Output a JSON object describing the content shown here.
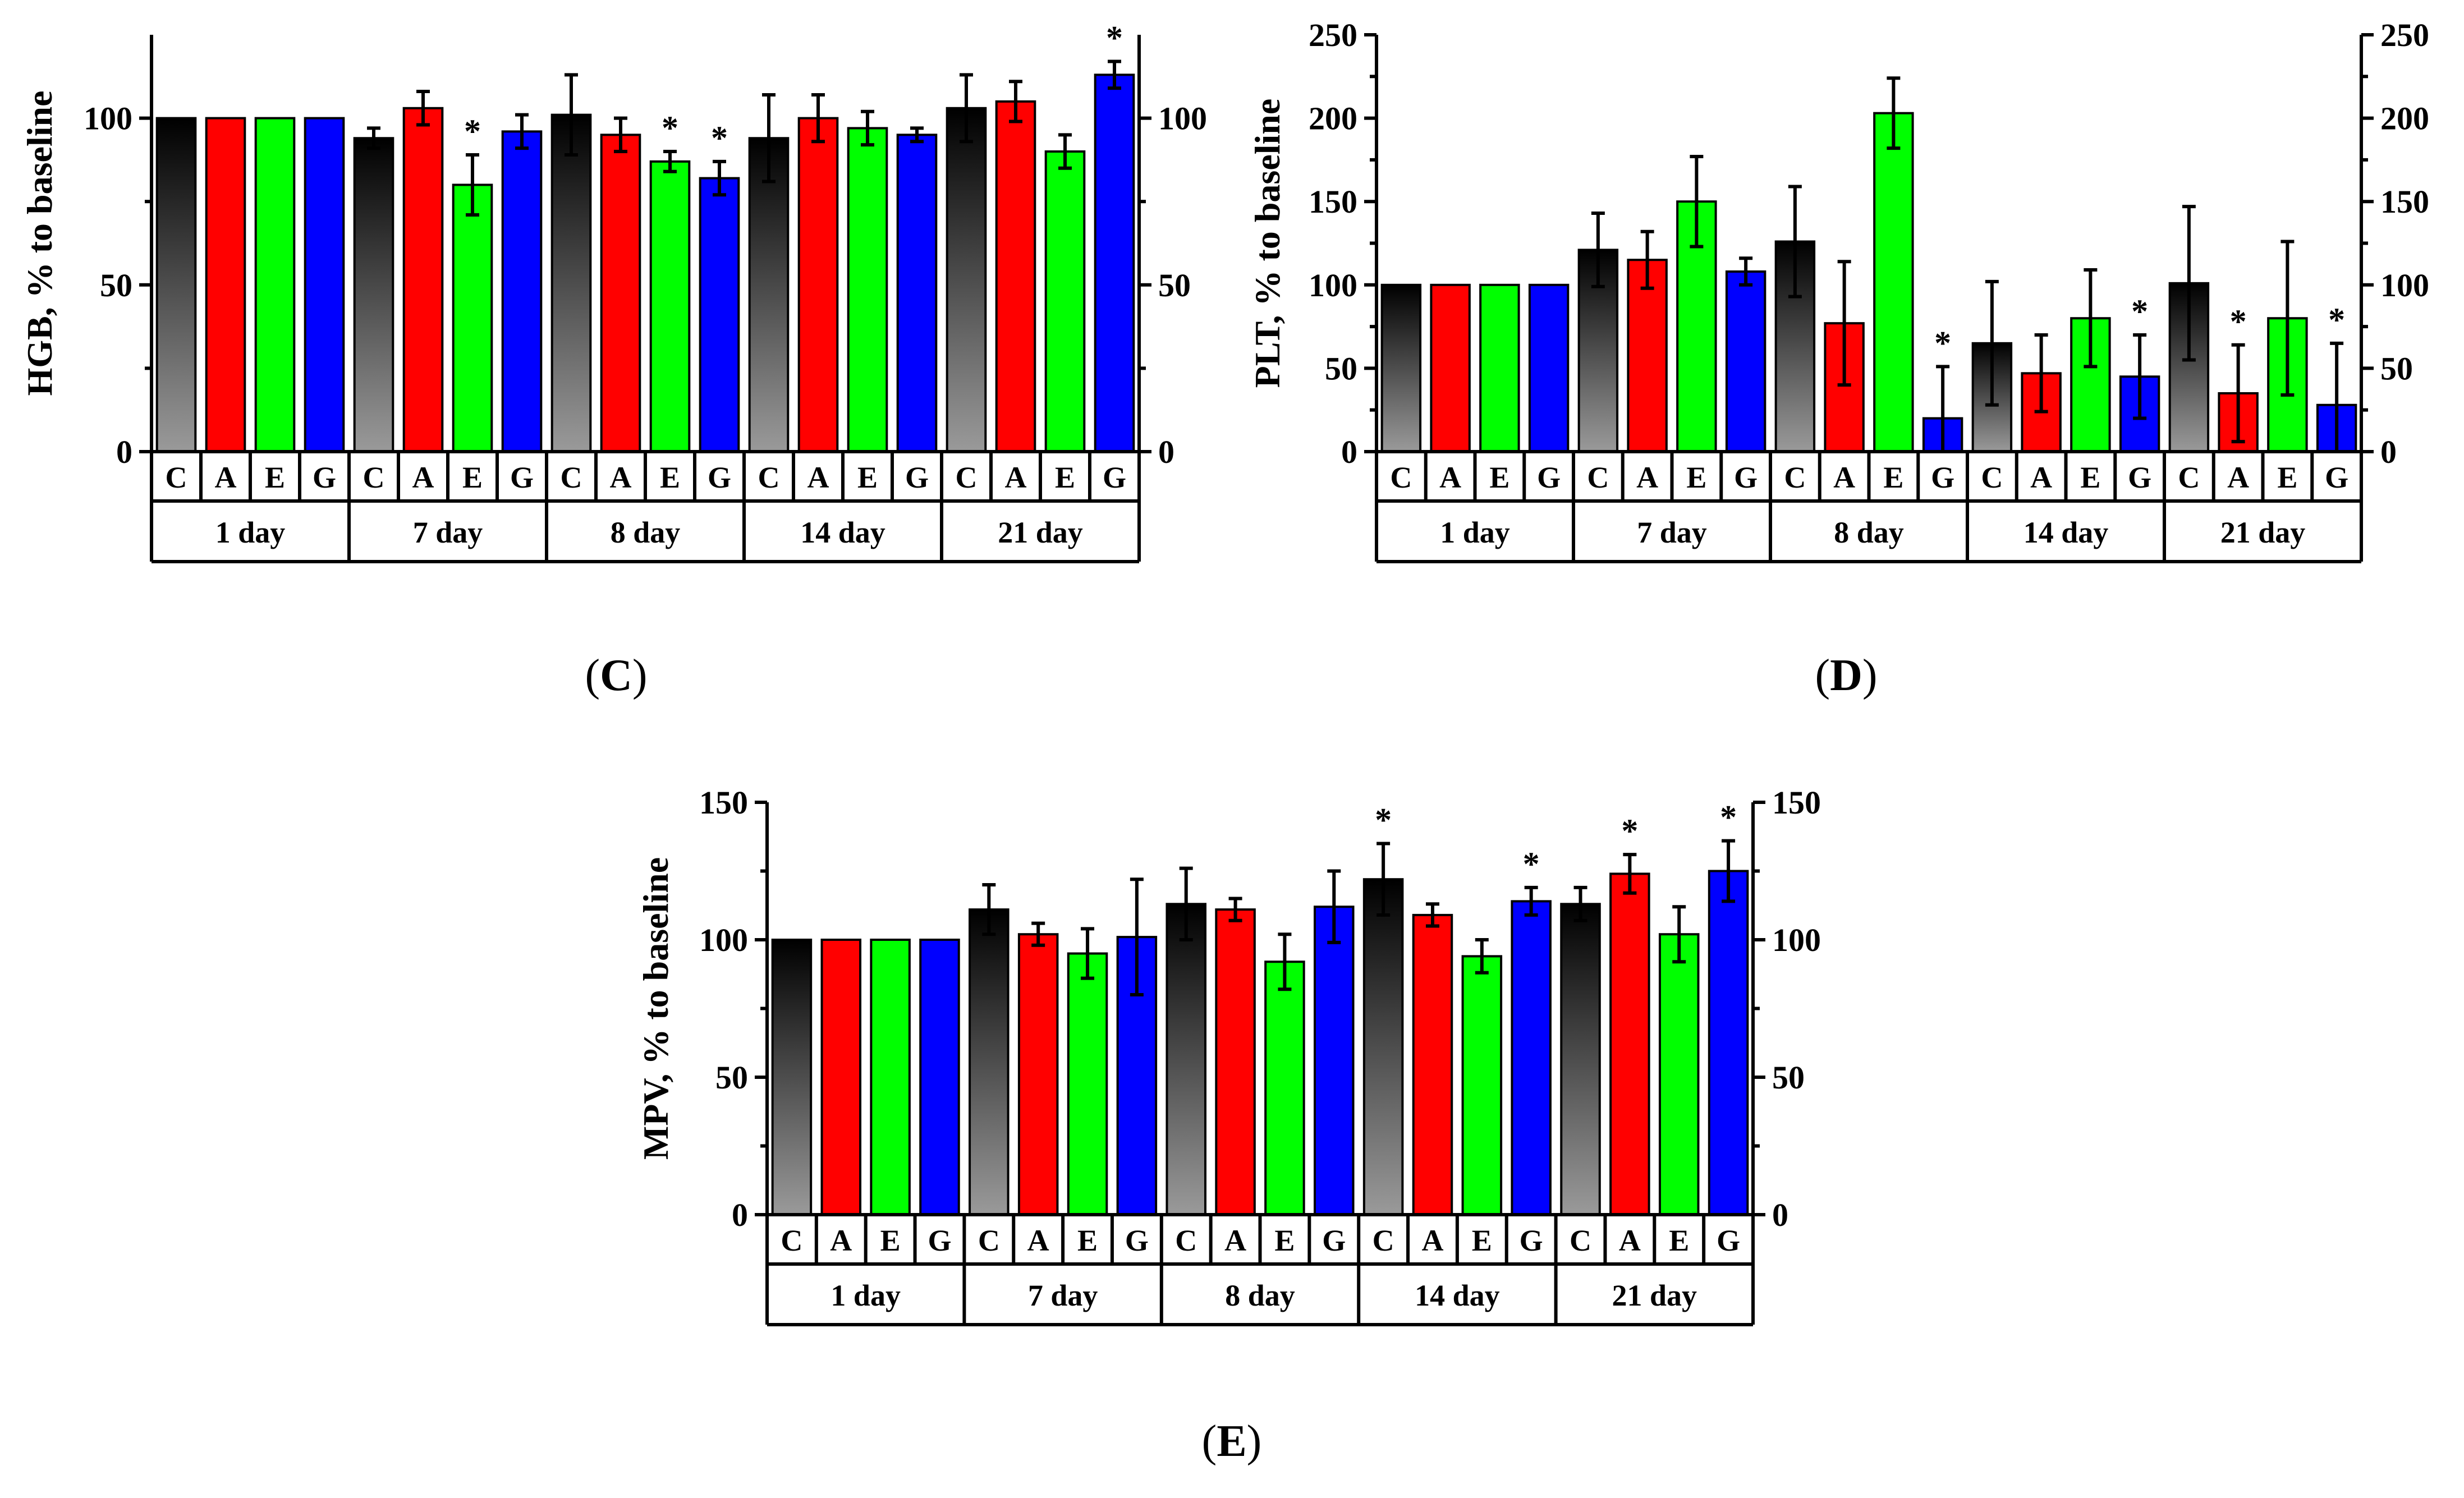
{
  "colors": {
    "C": "#000000",
    "A": "#ff0000",
    "E": "#00ff00",
    "G": "#0000ff"
  },
  "chart_data": [
    {
      "type": "bar",
      "panel_label": "C",
      "ylabel": "HGB, % to baseline",
      "ylim": [
        0,
        125
      ],
      "yticks": [
        0,
        50,
        100
      ],
      "y2ticks": [
        0,
        50,
        100
      ],
      "groups": [
        "1 day",
        "7 day",
        "8 day",
        "14 day",
        "21 day"
      ],
      "sub_labels": [
        "C",
        "A",
        "E",
        "G"
      ],
      "values": [
        [
          100,
          100,
          100,
          100
        ],
        [
          94,
          103,
          80,
          96
        ],
        [
          101,
          95,
          87,
          82
        ],
        [
          94,
          100,
          97,
          95
        ],
        [
          103,
          105,
          90,
          113
        ]
      ],
      "errors": [
        [
          0,
          0,
          0,
          0
        ],
        [
          3,
          5,
          9,
          5
        ],
        [
          12,
          5,
          3,
          5
        ],
        [
          13,
          7,
          5,
          2
        ],
        [
          10,
          6,
          5,
          4
        ]
      ],
      "significant": [
        [
          false,
          false,
          false,
          false
        ],
        [
          false,
          false,
          true,
          false
        ],
        [
          false,
          false,
          true,
          true
        ],
        [
          false,
          false,
          false,
          false
        ],
        [
          false,
          false,
          false,
          true
        ]
      ]
    },
    {
      "type": "bar",
      "panel_label": "D",
      "ylabel": "PLT, % to baseline",
      "ylim": [
        0,
        250
      ],
      "yticks": [
        0,
        50,
        100,
        150,
        200,
        250
      ],
      "y2ticks": [
        0,
        50,
        100,
        150,
        200,
        250
      ],
      "groups": [
        "1 day",
        "7 day",
        "8 day",
        "14 day",
        "21 day"
      ],
      "sub_labels": [
        "C",
        "A",
        "E",
        "G"
      ],
      "values": [
        [
          100,
          100,
          100,
          100
        ],
        [
          121,
          115,
          150,
          108
        ],
        [
          126,
          77,
          203,
          20
        ],
        [
          65,
          47,
          80,
          45
        ],
        [
          101,
          35,
          80,
          28
        ]
      ],
      "errors": [
        [
          0,
          0,
          0,
          0
        ],
        [
          22,
          17,
          27,
          8
        ],
        [
          33,
          37,
          21,
          31
        ],
        [
          37,
          23,
          29,
          25
        ],
        [
          46,
          29,
          46,
          37
        ]
      ],
      "significant": [
        [
          false,
          false,
          false,
          false
        ],
        [
          false,
          false,
          false,
          false
        ],
        [
          false,
          false,
          false,
          true
        ],
        [
          false,
          false,
          false,
          true
        ],
        [
          false,
          true,
          false,
          true
        ]
      ]
    },
    {
      "type": "bar",
      "panel_label": "E",
      "ylabel": "MPV, % to baseline",
      "ylim": [
        0,
        150
      ],
      "yticks": [
        0,
        50,
        100,
        150
      ],
      "y2ticks": [
        0,
        50,
        100,
        150
      ],
      "groups": [
        "1 day",
        "7 day",
        "8 day",
        "14 day",
        "21 day"
      ],
      "sub_labels": [
        "C",
        "A",
        "E",
        "G"
      ],
      "values": [
        [
          100,
          100,
          100,
          100
        ],
        [
          111,
          102,
          95,
          101
        ],
        [
          113,
          111,
          92,
          112
        ],
        [
          122,
          109,
          94,
          114
        ],
        [
          113,
          124,
          102,
          125
        ]
      ],
      "errors": [
        [
          0,
          0,
          0,
          0
        ],
        [
          9,
          4,
          9,
          21
        ],
        [
          13,
          4,
          10,
          13
        ],
        [
          13,
          4,
          6,
          5
        ],
        [
          6,
          7,
          10,
          11
        ]
      ],
      "significant": [
        [
          false,
          false,
          false,
          false
        ],
        [
          false,
          false,
          false,
          false
        ],
        [
          false,
          false,
          false,
          false
        ],
        [
          true,
          false,
          false,
          true
        ],
        [
          false,
          true,
          false,
          true
        ]
      ]
    }
  ]
}
